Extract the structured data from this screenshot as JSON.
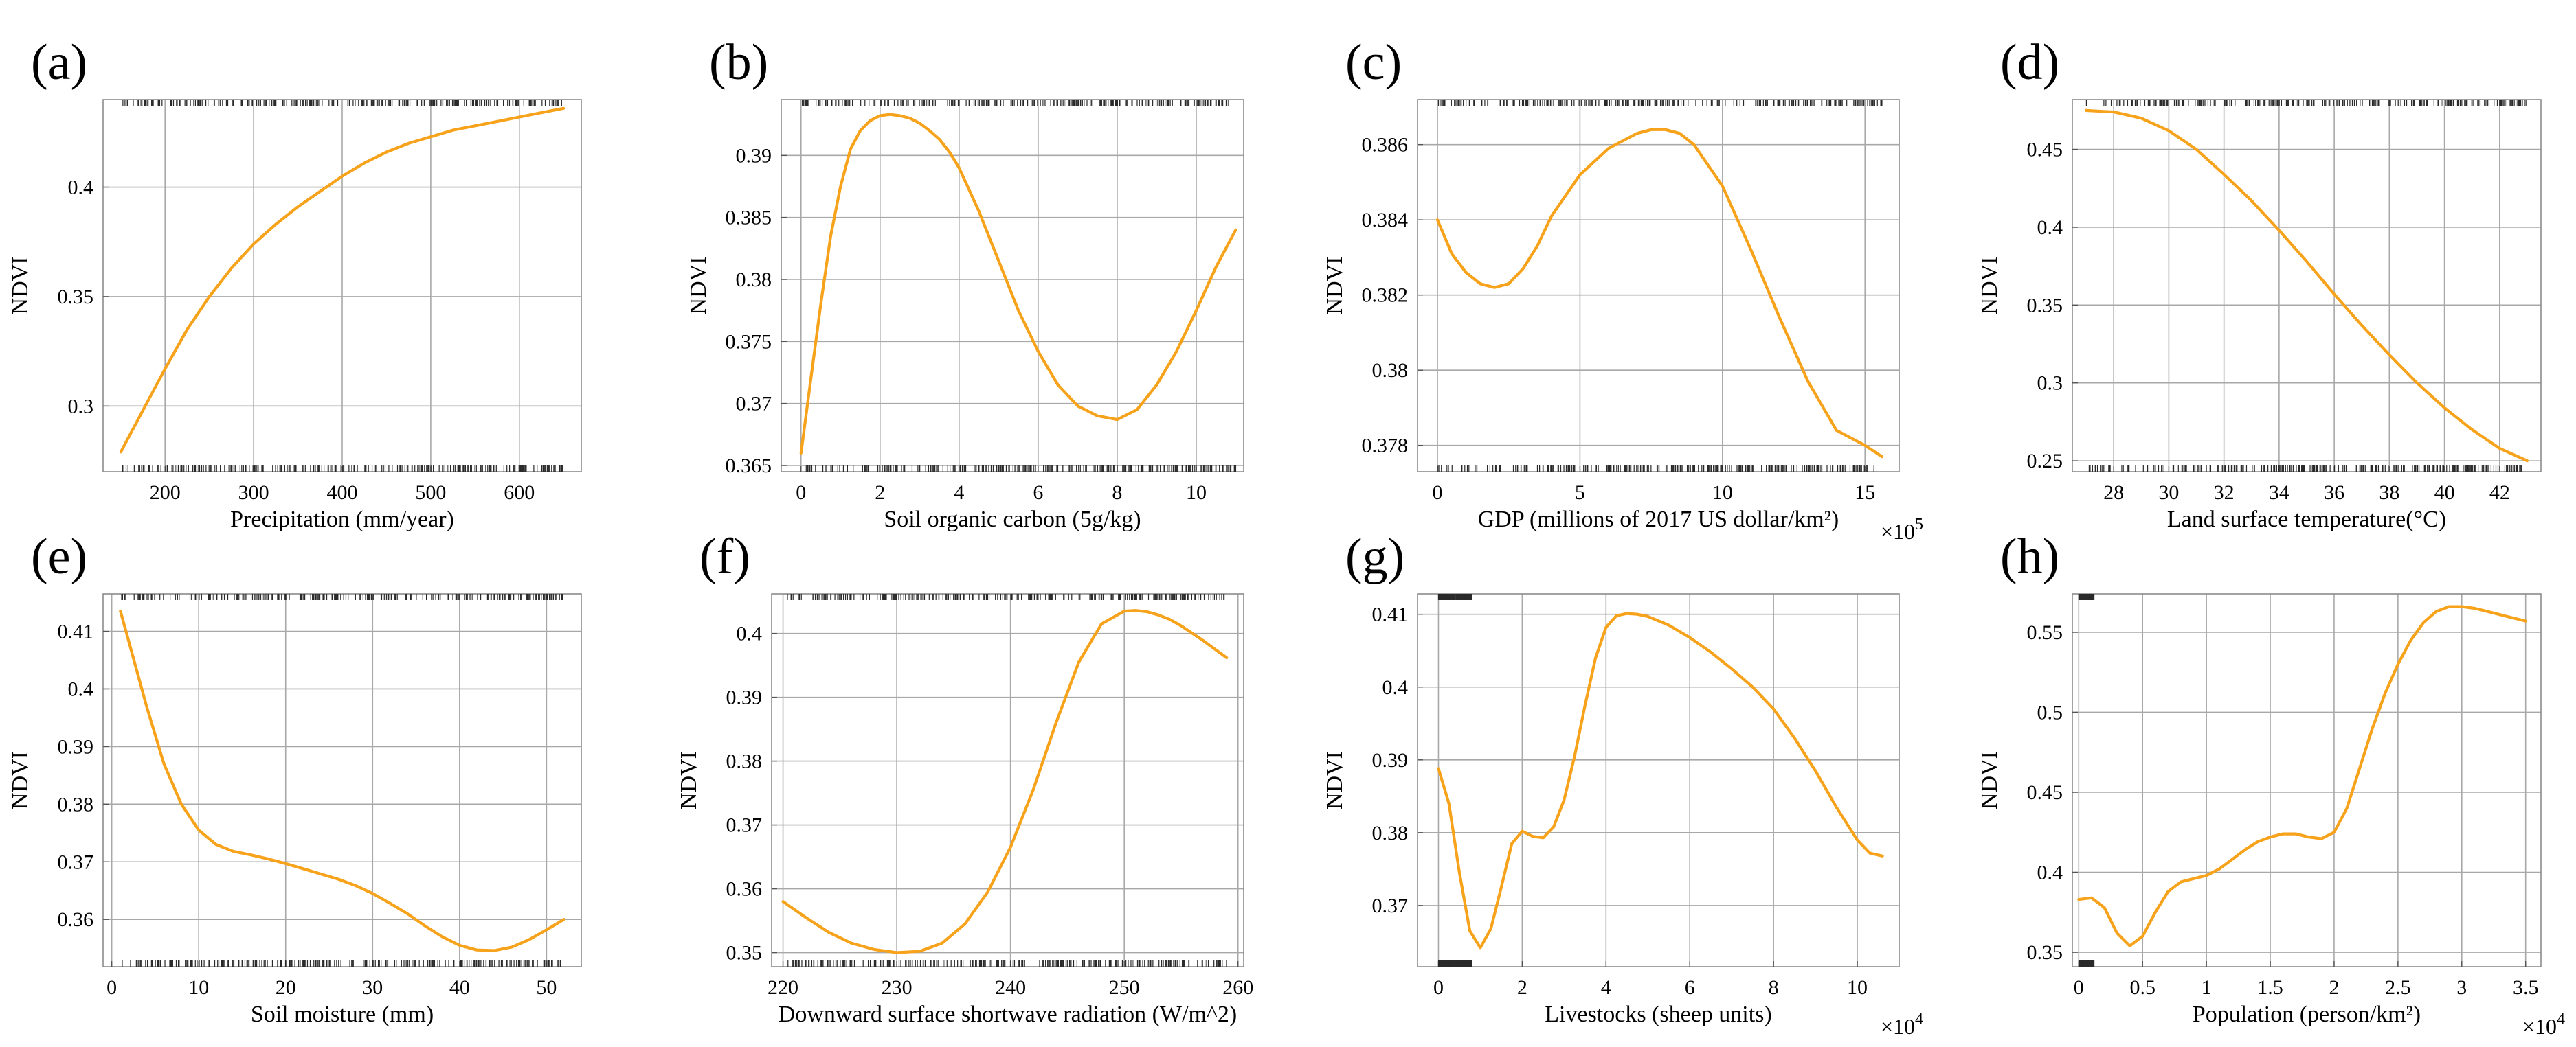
{
  "chart_data": [
    {
      "panel": "(a)",
      "type": "line",
      "xlabel": "Precipitation (mm/year)",
      "ylabel": "NDVI",
      "x_exponent": "",
      "xlim": [
        130,
        670
      ],
      "ylim": [
        0.27,
        0.44
      ],
      "xticks": [
        200,
        300,
        400,
        500,
        600
      ],
      "xtick_labels": [
        "200",
        "300",
        "400",
        "500",
        "600"
      ],
      "yticks": [
        0.3,
        0.35,
        0.4
      ],
      "ytick_labels": [
        "0.3",
        "0.35",
        "0.4"
      ],
      "rug_top": [
        150,
        650
      ],
      "rug_bottom": [
        150,
        650
      ],
      "x": [
        150,
        175,
        200,
        225,
        250,
        275,
        300,
        325,
        350,
        375,
        400,
        425,
        450,
        475,
        500,
        525,
        550,
        575,
        600,
        625,
        650
      ],
      "y": [
        0.279,
        0.298,
        0.317,
        0.335,
        0.35,
        0.363,
        0.374,
        0.383,
        0.391,
        0.398,
        0.405,
        0.411,
        0.416,
        0.42,
        0.423,
        0.426,
        0.428,
        0.43,
        0.432,
        0.434,
        0.436
      ]
    },
    {
      "panel": "(b)",
      "type": "line",
      "xlabel": "Soil organic carbon (5g/kg)",
      "ylabel": "NDVI",
      "x_exponent": "",
      "xlim": [
        -0.5,
        11.2
      ],
      "ylim": [
        0.3645,
        0.3945
      ],
      "xticks": [
        0,
        2,
        4,
        6,
        8,
        10
      ],
      "xtick_labels": [
        "0",
        "2",
        "4",
        "6",
        "8",
        "10"
      ],
      "yticks": [
        0.365,
        0.37,
        0.375,
        0.38,
        0.385,
        0.39
      ],
      "ytick_labels": [
        "0.365",
        "0.37",
        "0.375",
        "0.38",
        "0.385",
        "0.39"
      ],
      "rug_top": [
        0,
        11
      ],
      "rug_bottom": [
        0,
        11
      ],
      "x": [
        0,
        0.25,
        0.5,
        0.75,
        1,
        1.25,
        1.5,
        1.75,
        2,
        2.25,
        2.5,
        2.75,
        3,
        3.25,
        3.5,
        3.75,
        4,
        4.5,
        5,
        5.5,
        6,
        6.5,
        7,
        7.5,
        8,
        8.5,
        9,
        9.5,
        10,
        10.5,
        11
      ],
      "y": [
        0.366,
        0.372,
        0.378,
        0.3835,
        0.3875,
        0.3905,
        0.392,
        0.3928,
        0.3932,
        0.3933,
        0.3932,
        0.393,
        0.3926,
        0.392,
        0.3913,
        0.3903,
        0.389,
        0.3855,
        0.3815,
        0.3775,
        0.3742,
        0.3715,
        0.3698,
        0.369,
        0.3687,
        0.3695,
        0.3715,
        0.3742,
        0.3775,
        0.381,
        0.384
      ]
    },
    {
      "panel": "(c)",
      "type": "line",
      "xlabel": "GDP (millions of 2017 US dollar/km²)",
      "ylabel": "NDVI",
      "x_exponent": "×10^5",
      "xlim": [
        -0.7,
        16.2
      ],
      "ylim": [
        0.3773,
        0.3872
      ],
      "xticks": [
        0,
        5,
        10,
        15
      ],
      "xtick_labels": [
        "0",
        "5",
        "10",
        "15"
      ],
      "yticks": [
        0.378,
        0.38,
        0.382,
        0.384,
        0.386
      ],
      "ytick_labels": [
        "0.378",
        "0.38",
        "0.382",
        "0.384",
        "0.386"
      ],
      "rug_top": [
        0,
        15.6
      ],
      "rug_bottom": [
        0,
        15.6
      ],
      "x": [
        0,
        0.5,
        1,
        1.5,
        2,
        2.5,
        3,
        3.5,
        4,
        5,
        6,
        7,
        7.5,
        8,
        8.5,
        9,
        10,
        11,
        12,
        13,
        14,
        15,
        15.6
      ],
      "y": [
        0.384,
        0.3831,
        0.3826,
        0.3823,
        0.3822,
        0.3823,
        0.3827,
        0.3833,
        0.3841,
        0.3852,
        0.3859,
        0.3863,
        0.3864,
        0.3864,
        0.3863,
        0.386,
        0.3849,
        0.3832,
        0.3814,
        0.3797,
        0.3784,
        0.378,
        0.3777
      ]
    },
    {
      "panel": "(d)",
      "type": "line",
      "xlabel": "Land surface temperature(°C)",
      "ylabel": "NDVI",
      "x_exponent": "",
      "xlim": [
        26.5,
        43.5
      ],
      "ylim": [
        0.243,
        0.482
      ],
      "xticks": [
        28,
        30,
        32,
        34,
        36,
        38,
        40,
        42
      ],
      "xtick_labels": [
        "28",
        "30",
        "32",
        "34",
        "36",
        "38",
        "40",
        "42"
      ],
      "yticks": [
        0.25,
        0.3,
        0.35,
        0.4,
        0.45
      ],
      "ytick_labels": [
        "0.25",
        "0.3",
        "0.35",
        "0.4",
        "0.45"
      ],
      "rug_top": [
        27,
        43
      ],
      "rug_bottom": [
        27,
        43
      ],
      "x": [
        27,
        28,
        29,
        30,
        31,
        32,
        33,
        34,
        35,
        36,
        37,
        38,
        39,
        40,
        41,
        42,
        43
      ],
      "y": [
        0.475,
        0.474,
        0.47,
        0.462,
        0.45,
        0.434,
        0.417,
        0.398,
        0.378,
        0.357,
        0.337,
        0.318,
        0.3,
        0.284,
        0.27,
        0.258,
        0.25
      ]
    },
    {
      "panel": "(e)",
      "type": "line",
      "xlabel": "Soil moisture (mm)",
      "ylabel": "NDVI",
      "x_exponent": "",
      "xlim": [
        -1,
        54
      ],
      "ylim": [
        0.3518,
        0.4165
      ],
      "xticks": [
        0,
        10,
        20,
        30,
        40,
        50
      ],
      "xtick_labels": [
        "0",
        "10",
        "20",
        "30",
        "40",
        "50"
      ],
      "yticks": [
        0.36,
        0.37,
        0.38,
        0.39,
        0.4,
        0.41
      ],
      "ytick_labels": [
        "0.36",
        "0.37",
        "0.38",
        "0.39",
        "0.4",
        "0.41"
      ],
      "rug_top": [
        1,
        52
      ],
      "rug_bottom": [
        1,
        52
      ],
      "x": [
        1,
        2,
        4,
        6,
        8,
        10,
        12,
        14,
        16,
        18,
        20,
        22,
        24,
        26,
        28,
        30,
        32,
        34,
        36,
        38,
        40,
        42,
        44,
        46,
        48,
        50,
        52
      ],
      "y": [
        0.4135,
        0.408,
        0.397,
        0.387,
        0.38,
        0.3755,
        0.373,
        0.3718,
        0.3712,
        0.3705,
        0.3697,
        0.3688,
        0.3679,
        0.367,
        0.3659,
        0.3645,
        0.3628,
        0.361,
        0.3589,
        0.357,
        0.3555,
        0.3547,
        0.3546,
        0.3552,
        0.3565,
        0.3582,
        0.36
      ]
    },
    {
      "panel": "(f)",
      "type": "line",
      "xlabel": "Downward surface shortwave radiation (W/m^2)",
      "ylabel": "NDVI",
      "x_exponent": "",
      "xlim": [
        219,
        260.5
      ],
      "ylim": [
        0.3478,
        0.4062
      ],
      "xticks": [
        220,
        230,
        240,
        250,
        260
      ],
      "xtick_labels": [
        "220",
        "230",
        "240",
        "250",
        "260"
      ],
      "yticks": [
        0.35,
        0.36,
        0.37,
        0.38,
        0.39,
        0.4
      ],
      "ytick_labels": [
        "0.35",
        "0.36",
        "0.37",
        "0.38",
        "0.39",
        "0.4"
      ],
      "rug_top": [
        220,
        259
      ],
      "rug_bottom": [
        220,
        259
      ],
      "x": [
        220,
        222,
        224,
        226,
        228,
        230,
        232,
        234,
        236,
        238,
        240,
        242,
        244,
        246,
        248,
        250,
        251,
        252,
        253,
        254,
        255,
        256,
        257,
        258,
        259
      ],
      "y": [
        0.358,
        0.3555,
        0.3532,
        0.3515,
        0.3505,
        0.35,
        0.3502,
        0.3515,
        0.3545,
        0.3595,
        0.3665,
        0.3755,
        0.386,
        0.3955,
        0.4015,
        0.4035,
        0.4036,
        0.4034,
        0.4029,
        0.4022,
        0.4012,
        0.4,
        0.3988,
        0.3975,
        0.3962
      ]
    },
    {
      "panel": "(g)",
      "type": "line",
      "xlabel": "Livestocks (sheep units)",
      "ylabel": "NDVI",
      "x_exponent": "×10^4",
      "xlim": [
        -0.5,
        11
      ],
      "ylim": [
        0.3616,
        0.4128
      ],
      "xticks": [
        0,
        2,
        4,
        6,
        8,
        10
      ],
      "xtick_labels": [
        "0",
        "2",
        "4",
        "6",
        "8",
        "10"
      ],
      "yticks": [
        0.37,
        0.38,
        0.39,
        0.4,
        0.41
      ],
      "ytick_labels": [
        "0.37",
        "0.38",
        "0.39",
        "0.4",
        "0.41"
      ],
      "rug_top": [
        0,
        0.8
      ],
      "rug_bottom": [
        0,
        0.8
      ],
      "x": [
        0,
        0.25,
        0.5,
        0.75,
        1,
        1.25,
        1.5,
        1.75,
        2,
        2.25,
        2.5,
        2.75,
        3,
        3.25,
        3.5,
        3.75,
        4,
        4.25,
        4.5,
        4.75,
        5,
        5.5,
        6,
        6.5,
        7,
        7.5,
        8,
        8.5,
        9,
        9.5,
        10,
        10.3,
        10.6
      ],
      "y": [
        0.3888,
        0.384,
        0.3745,
        0.3665,
        0.3642,
        0.3668,
        0.3725,
        0.3785,
        0.3802,
        0.3795,
        0.3793,
        0.3808,
        0.3845,
        0.3905,
        0.3975,
        0.404,
        0.4082,
        0.4098,
        0.4101,
        0.41,
        0.4097,
        0.4085,
        0.4068,
        0.4048,
        0.4025,
        0.4,
        0.397,
        0.393,
        0.3885,
        0.3835,
        0.379,
        0.3772,
        0.3768
      ]
    },
    {
      "panel": "(h)",
      "type": "line",
      "xlabel": "Population (person/km²)",
      "ylabel": "NDVI",
      "x_exponent": "×10^4",
      "xlim": [
        -0.05,
        3.62
      ],
      "ylim": [
        0.341,
        0.574
      ],
      "xticks": [
        0,
        0.5,
        1,
        1.5,
        2,
        2.5,
        3,
        3.5
      ],
      "xtick_labels": [
        "0",
        "0.5",
        "1",
        "1.5",
        "2",
        "2.5",
        "3",
        "3.5"
      ],
      "yticks": [
        0.35,
        0.4,
        0.45,
        0.5,
        0.55
      ],
      "ytick_labels": [
        "0.35",
        "0.4",
        "0.45",
        "0.5",
        "0.55"
      ],
      "rug_top": [
        0,
        0.12
      ],
      "rug_bottom": [
        0,
        0.12
      ],
      "x": [
        0,
        0.1,
        0.2,
        0.3,
        0.4,
        0.5,
        0.6,
        0.7,
        0.8,
        0.9,
        1.0,
        1.1,
        1.2,
        1.3,
        1.4,
        1.5,
        1.6,
        1.7,
        1.8,
        1.9,
        2.0,
        2.1,
        2.2,
        2.3,
        2.4,
        2.5,
        2.6,
        2.7,
        2.8,
        2.9,
        3.0,
        3.1,
        3.2,
        3.3,
        3.4,
        3.5
      ],
      "y": [
        0.383,
        0.384,
        0.378,
        0.362,
        0.354,
        0.36,
        0.375,
        0.388,
        0.394,
        0.396,
        0.398,
        0.402,
        0.408,
        0.414,
        0.419,
        0.422,
        0.424,
        0.424,
        0.422,
        0.421,
        0.425,
        0.44,
        0.465,
        0.49,
        0.512,
        0.53,
        0.545,
        0.556,
        0.563,
        0.566,
        0.566,
        0.565,
        0.563,
        0.561,
        0.559,
        0.557
      ]
    }
  ]
}
